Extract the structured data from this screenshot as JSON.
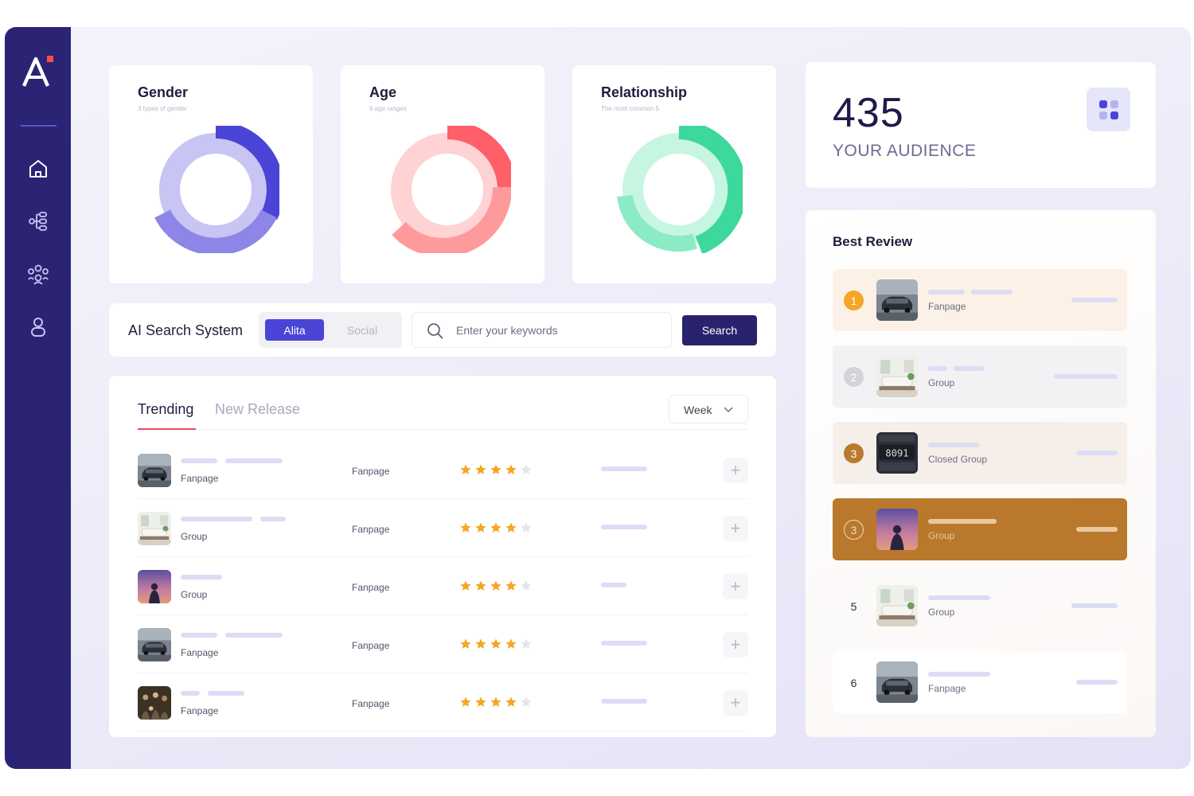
{
  "colors": {
    "sidebar": "#2b2475",
    "accent": "#4a45d6",
    "gender": [
      "#4a45d6",
      "#8d86e6",
      "#c8c4f4"
    ],
    "age": [
      "#ff5f68",
      "#ff9a9c",
      "#ffd2d3"
    ],
    "relationship": [
      "#3dd89b",
      "#8cebc4",
      "#c6f6e2"
    ],
    "star": "#f5a623",
    "highlight": "#b9782b"
  },
  "sidebar": {
    "icons": [
      "home-icon",
      "hierarchy-icon",
      "community-icon",
      "user-icon"
    ]
  },
  "charts": [
    {
      "title": "Gender",
      "subtitle": "3 types of gender"
    },
    {
      "title": "Age",
      "subtitle": "6 age ranges"
    },
    {
      "title": "Relationship",
      "subtitle": "The most common 5"
    }
  ],
  "audience": {
    "count": "435",
    "label": "YOUR AUDIENCE"
  },
  "search": {
    "title": "AI Search System",
    "tab_active": "Alita",
    "tab_inactive": "Social",
    "placeholder": "Enter your keywords",
    "button": "Search"
  },
  "trending": {
    "tabs": [
      "Trending",
      "New Release"
    ],
    "period": "Week",
    "rows": [
      {
        "type": "Fanpage",
        "category": "Fanpage",
        "rating": 4,
        "thumb": "car"
      },
      {
        "type": "Group",
        "category": "Fanpage",
        "rating": 4,
        "thumb": "room"
      },
      {
        "type": "Group",
        "category": "Fanpage",
        "rating": 4,
        "thumb": "sunset"
      },
      {
        "type": "Fanpage",
        "category": "Fanpage",
        "rating": 4,
        "thumb": "car"
      },
      {
        "type": "Fanpage",
        "category": "Fanpage",
        "rating": 4,
        "thumb": "crowd"
      }
    ]
  },
  "best_review": {
    "title": "Best Review",
    "items": [
      {
        "rank": "1",
        "type": "Fanpage",
        "thumb": "car"
      },
      {
        "rank": "2",
        "type": "Group",
        "thumb": "room"
      },
      {
        "rank": "3",
        "type": "Closed Group",
        "thumb": "clock"
      },
      {
        "rank": "3",
        "type": "Group",
        "thumb": "sunset"
      },
      {
        "rank": "5",
        "type": "Group",
        "thumb": "room"
      },
      {
        "rank": "6",
        "type": "Fanpage",
        "thumb": "car"
      }
    ]
  }
}
